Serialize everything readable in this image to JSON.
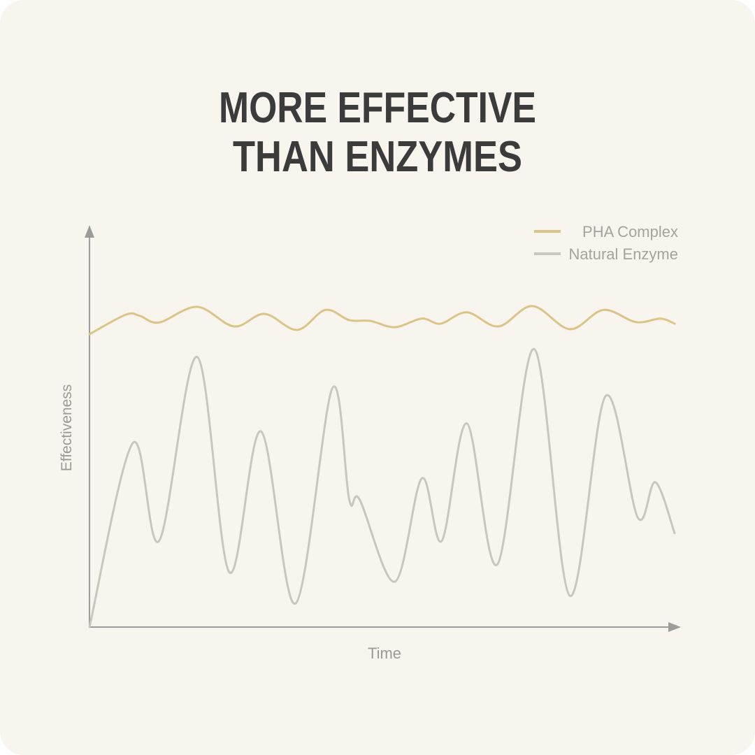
{
  "chart_data": {
    "type": "line",
    "title": [
      "MORE EFFECTIVE",
      "THAN ENZYMES"
    ],
    "x_label": "Time",
    "y_label": "Effectiveness",
    "xlim": [
      0,
      100
    ],
    "ylim": [
      0,
      100
    ],
    "legend": "top-right",
    "series": [
      {
        "name": "PHA Complex",
        "color": "#dcc486",
        "x": [
          0,
          6.2,
          8.6,
          11.9,
          18.4,
          24.7,
          29.9,
          35.5,
          40.3,
          44.4,
          48,
          52.2,
          56.8,
          60,
          64.5,
          69.9,
          75.7,
          82.1,
          87.8,
          93.4,
          97.6,
          100
        ],
        "values": [
          74.8,
          79.8,
          79.5,
          77.8,
          81.8,
          76.8,
          80,
          75.9,
          81,
          78.4,
          78.2,
          76.6,
          78.8,
          77.5,
          80.4,
          76.8,
          82,
          76.1,
          81,
          77.9,
          78.8,
          77.5
        ]
      },
      {
        "name": "Natural Enzyme",
        "color": "#c9c6bd",
        "x": [
          0,
          7.4,
          11.9,
          18.4,
          23.9,
          29.3,
          35.2,
          41.5,
          44.4,
          46.2,
          52.2,
          56.8,
          60.2,
          64.5,
          69.7,
          76,
          82.1,
          88.2,
          93.7,
          96.7,
          100
        ],
        "values": [
          0,
          47,
          22,
          69,
          14,
          50,
          6,
          61,
          32.5,
          32.5,
          11.6,
          38,
          22,
          52,
          16,
          71,
          8,
          59,
          28,
          37,
          24
        ]
      }
    ]
  }
}
